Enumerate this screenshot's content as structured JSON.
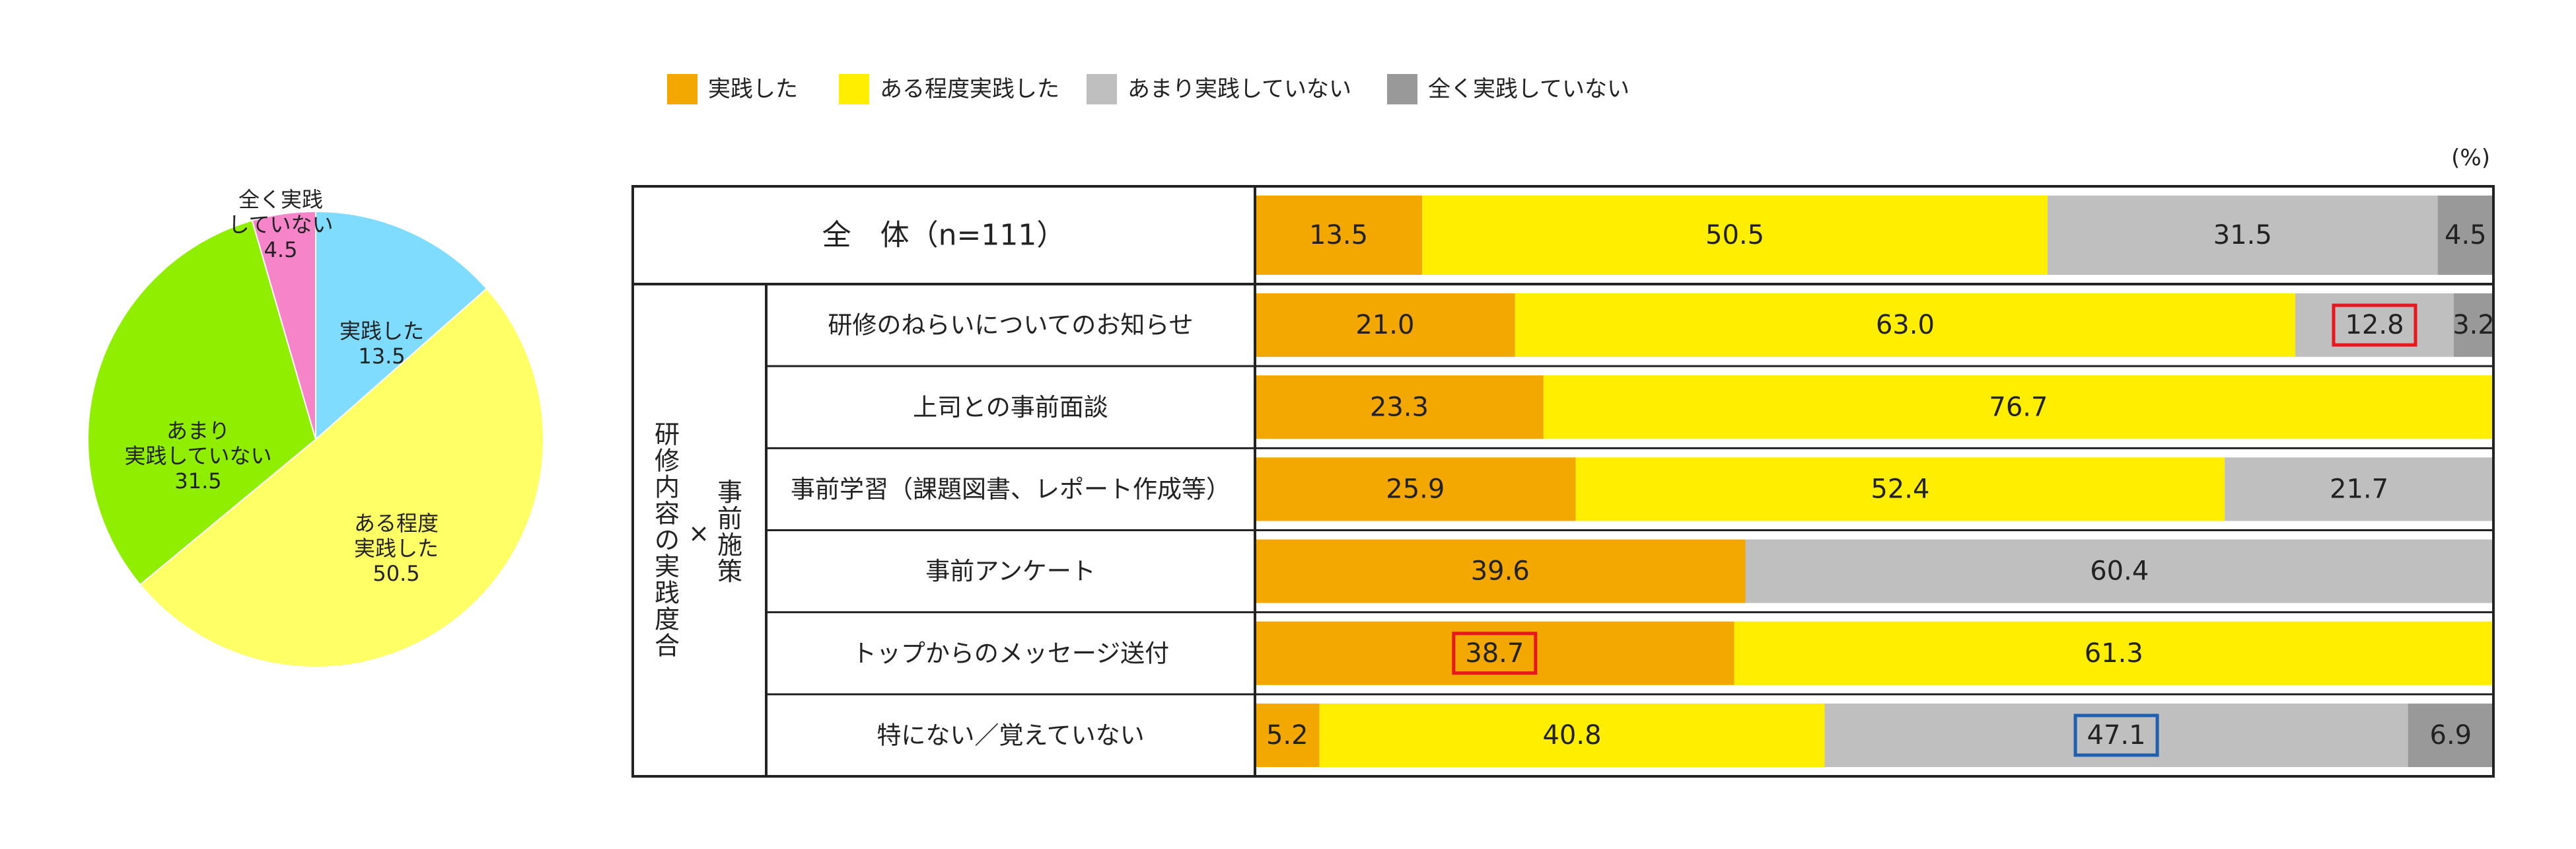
{
  "chart_data": [
    {
      "type": "pie",
      "slices": [
        {
          "label_lines": [
            "実践した"
          ],
          "value": 13.5,
          "value_text": "13.5",
          "color": "#7fdcff"
        },
        {
          "label_lines": [
            "ある程度",
            "実践した"
          ],
          "value": 50.5,
          "value_text": "50.5",
          "color": "#ffff66"
        },
        {
          "label_lines": [
            "あまり",
            "実践していない"
          ],
          "value": 31.5,
          "value_text": "31.5",
          "color": "#90ee00"
        },
        {
          "label_lines": [
            "全く実践",
            "していない"
          ],
          "value": 4.5,
          "value_text": "4.5",
          "color": "#f584c8"
        }
      ]
    },
    {
      "type": "bar",
      "orientation": "horizontal",
      "stacked": true,
      "unit": "(%)",
      "legend_position": "top",
      "series": [
        {
          "name": "実践した",
          "color": "#f2a800"
        },
        {
          "name": "ある程度実践した",
          "color": "#ffee00"
        },
        {
          "name": "あまり実践していない",
          "color": "#bfbfbf"
        },
        {
          "name": "全く実践していない",
          "color": "#999999"
        }
      ],
      "total_row": {
        "label": "全　体（n=111）",
        "values": [
          13.5,
          50.5,
          31.5,
          4.5
        ],
        "texts": [
          "13.5",
          "50.5",
          "31.5",
          "4.5"
        ]
      },
      "group_label": "研修内容の実践度合",
      "group_sublabel": "事前施策",
      "group_cross": "×",
      "rows": [
        {
          "label": "研修のねらいについてのお知らせ",
          "values": [
            21.0,
            63.0,
            12.8,
            3.2
          ],
          "texts": [
            "21.0",
            "63.0",
            "12.8",
            "3.2"
          ],
          "highlights": [
            null,
            null,
            "red",
            null
          ]
        },
        {
          "label": "上司との事前面談",
          "values": [
            23.3,
            76.7,
            0,
            0
          ],
          "texts": [
            "23.3",
            "76.7",
            "",
            ""
          ],
          "highlights": [
            null,
            null,
            null,
            null
          ]
        },
        {
          "label": "事前学習（課題図書、レポート作成等）",
          "values": [
            25.9,
            52.4,
            21.7,
            0
          ],
          "texts": [
            "25.9",
            "52.4",
            "21.7",
            ""
          ],
          "highlights": [
            null,
            null,
            null,
            null
          ]
        },
        {
          "label": "事前アンケート",
          "values": [
            39.6,
            0,
            60.4,
            0
          ],
          "texts": [
            "39.6",
            "",
            "60.4",
            ""
          ],
          "highlights": [
            null,
            null,
            null,
            null
          ]
        },
        {
          "label": "トップからのメッセージ送付",
          "values": [
            38.7,
            61.3,
            0,
            0
          ],
          "texts": [
            "38.7",
            "61.3",
            "",
            ""
          ],
          "highlights": [
            "red",
            null,
            null,
            null
          ]
        },
        {
          "label": "特にない／覚えていない",
          "values": [
            5.2,
            40.8,
            47.1,
            6.9
          ],
          "texts": [
            "5.2",
            "40.8",
            "47.1",
            "6.9"
          ],
          "highlights": [
            null,
            null,
            "blue",
            null
          ]
        }
      ]
    }
  ],
  "highlight_colors": {
    "red": "#e8161d",
    "blue": "#1f5fae"
  }
}
